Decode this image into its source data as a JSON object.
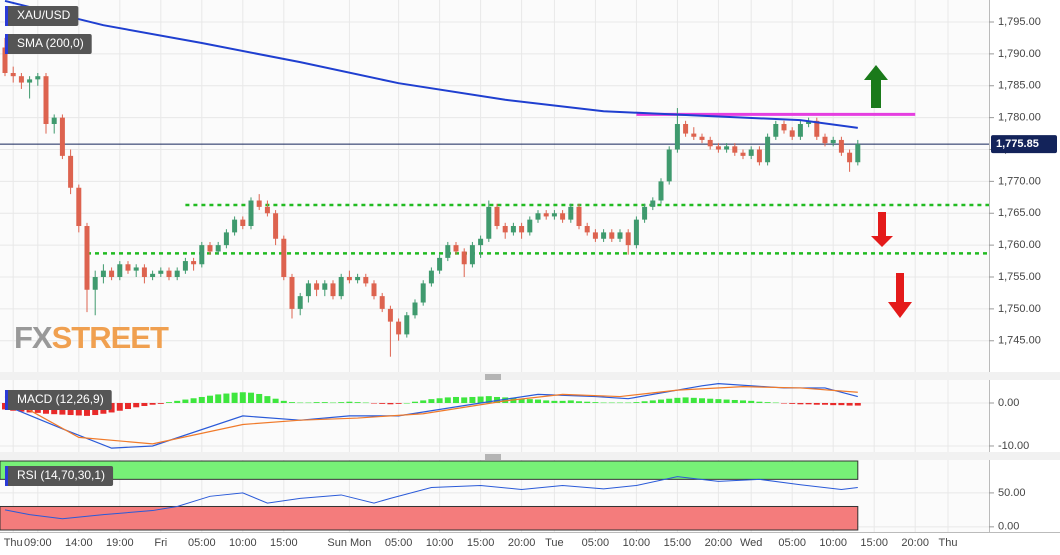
{
  "chart_data": [
    {
      "type": "candlestick",
      "title": "XAU/USD",
      "xlim": [
        0,
        120
      ],
      "xticks": [
        {
          "value": 1,
          "label": "Thu"
        },
        {
          "value": 4,
          "label": "09:00"
        },
        {
          "value": 9,
          "label": "14:00"
        },
        {
          "value": 14,
          "label": "19:00"
        },
        {
          "value": 19,
          "label": "Fri"
        },
        {
          "value": 24,
          "label": "05:00"
        },
        {
          "value": 29,
          "label": "10:00"
        },
        {
          "value": 34,
          "label": "15:00"
        },
        {
          "value": 42,
          "label": "Sun Mon"
        },
        {
          "value": 48,
          "label": "05:00"
        },
        {
          "value": 53,
          "label": "10:00"
        },
        {
          "value": 58,
          "label": "15:00"
        },
        {
          "value": 63,
          "label": "20:00"
        },
        {
          "value": 67,
          "label": "Tue"
        },
        {
          "value": 72,
          "label": "05:00"
        },
        {
          "value": 77,
          "label": "10:00"
        },
        {
          "value": 82,
          "label": "15:00"
        },
        {
          "value": 87,
          "label": "20:00"
        },
        {
          "value": 91,
          "label": "Wed"
        },
        {
          "value": 96,
          "label": "05:00"
        },
        {
          "value": 101,
          "label": "10:00"
        },
        {
          "value": 106,
          "label": "15:00"
        },
        {
          "value": 111,
          "label": "20:00"
        },
        {
          "value": 115,
          "label": "Thu"
        }
      ],
      "ylim": [
        1740.1,
        1798.45
      ],
      "yticks": [
        {
          "value": 1745,
          "label": "1,745.00"
        },
        {
          "value": 1750,
          "label": "1,750.00"
        },
        {
          "value": 1755,
          "label": "1,755.00"
        },
        {
          "value": 1760,
          "label": "1,760.00"
        },
        {
          "value": 1765,
          "label": "1,765.00"
        },
        {
          "value": 1770,
          "label": "1,770.00"
        },
        {
          "value": 1775,
          "label": "1,775.00"
        },
        {
          "value": 1780,
          "label": "1,780.00"
        },
        {
          "value": 1785,
          "label": "1,785.00"
        },
        {
          "value": 1790,
          "label": "1,790.00"
        },
        {
          "value": 1795,
          "label": "1,795.00"
        }
      ],
      "grid": true,
      "up_color": "#3f9a6e",
      "down_color": "#dd634f",
      "ohlc": [
        [
          1791,
          1792.5,
          1786.5,
          1787
        ],
        [
          1787,
          1788,
          1785.5,
          1786.5
        ],
        [
          1786.5,
          1787,
          1784.5,
          1785.5
        ],
        [
          1785.5,
          1786.5,
          1783,
          1786
        ],
        [
          1786,
          1787,
          1785,
          1786.5
        ],
        [
          1786.5,
          1787,
          1777.5,
          1779
        ],
        [
          1779,
          1780.5,
          1777.5,
          1780
        ],
        [
          1780,
          1780.5,
          1773.5,
          1774
        ],
        [
          1774,
          1775,
          1768,
          1769
        ],
        [
          1769,
          1769.5,
          1762,
          1763
        ],
        [
          1763,
          1763.5,
          1749.5,
          1753
        ],
        [
          1753,
          1756,
          1749,
          1755
        ],
        [
          1755,
          1757,
          1754,
          1756
        ],
        [
          1756,
          1756.5,
          1754.5,
          1755
        ],
        [
          1755,
          1757.5,
          1754.5,
          1757
        ],
        [
          1757,
          1757.5,
          1755.5,
          1756
        ],
        [
          1756,
          1757,
          1755,
          1756.5
        ],
        [
          1756.5,
          1757,
          1754,
          1755
        ],
        [
          1755,
          1756,
          1754.5,
          1755.5
        ],
        [
          1755.5,
          1756.5,
          1755,
          1756
        ],
        [
          1756,
          1756.5,
          1754.5,
          1755
        ],
        [
          1755,
          1756.5,
          1754.5,
          1756
        ],
        [
          1756,
          1758,
          1755.5,
          1757.5
        ],
        [
          1757.5,
          1758,
          1756,
          1757
        ],
        [
          1757,
          1760.5,
          1756.5,
          1760
        ],
        [
          1760,
          1760.5,
          1758.5,
          1759
        ],
        [
          1759,
          1760.5,
          1758.5,
          1760
        ],
        [
          1760,
          1762.5,
          1759.5,
          1762
        ],
        [
          1762,
          1764.5,
          1761.5,
          1764
        ],
        [
          1764,
          1764.5,
          1762.5,
          1763
        ],
        [
          1763,
          1767.5,
          1762.5,
          1767
        ],
        [
          1767,
          1768,
          1765.5,
          1766
        ],
        [
          1766,
          1767,
          1764.5,
          1765
        ],
        [
          1765,
          1765.5,
          1760,
          1761
        ],
        [
          1761,
          1761.5,
          1754.5,
          1755
        ],
        [
          1755,
          1755.5,
          1748.5,
          1750
        ],
        [
          1750,
          1752.5,
          1749,
          1752
        ],
        [
          1752,
          1754.5,
          1751,
          1754
        ],
        [
          1754,
          1754.5,
          1752,
          1753
        ],
        [
          1753,
          1754.5,
          1752,
          1754
        ],
        [
          1754,
          1754.5,
          1751.5,
          1752
        ],
        [
          1752,
          1755.5,
          1751.5,
          1755
        ],
        [
          1755,
          1756,
          1754,
          1754.5
        ],
        [
          1754.5,
          1755.5,
          1754,
          1755
        ],
        [
          1755,
          1755.5,
          1753.5,
          1754
        ],
        [
          1754,
          1754.5,
          1751.5,
          1752
        ],
        [
          1752,
          1752.5,
          1749.5,
          1750
        ],
        [
          1750,
          1750.5,
          1742.5,
          1748
        ],
        [
          1748,
          1748.5,
          1745,
          1746
        ],
        [
          1746,
          1749.5,
          1745.5,
          1749
        ],
        [
          1749,
          1751.5,
          1748.5,
          1751
        ],
        [
          1751,
          1754.5,
          1750.5,
          1754
        ],
        [
          1754,
          1756.5,
          1753.5,
          1756
        ],
        [
          1756,
          1758.5,
          1755.5,
          1758
        ],
        [
          1758,
          1760.5,
          1757.5,
          1760
        ],
        [
          1760,
          1760.5,
          1758.5,
          1759
        ],
        [
          1759,
          1759.5,
          1755,
          1757
        ],
        [
          1757,
          1760.5,
          1756.5,
          1760
        ],
        [
          1760,
          1761.5,
          1758,
          1761
        ],
        [
          1761,
          1767,
          1760.5,
          1766
        ],
        [
          1766,
          1766.5,
          1762.5,
          1763
        ],
        [
          1763,
          1763.5,
          1761,
          1762
        ],
        [
          1762,
          1763.5,
          1761.5,
          1763
        ],
        [
          1763,
          1763.5,
          1761,
          1762
        ],
        [
          1762,
          1764.5,
          1761.5,
          1764
        ],
        [
          1764,
          1765.5,
          1763.5,
          1765
        ],
        [
          1765,
          1765.5,
          1764,
          1764.5
        ],
        [
          1764.5,
          1765.5,
          1764,
          1765
        ],
        [
          1765,
          1765.5,
          1763.5,
          1764
        ],
        [
          1764,
          1766.5,
          1763.5,
          1766
        ],
        [
          1766,
          1766.5,
          1762.5,
          1763
        ],
        [
          1763,
          1763.5,
          1761.5,
          1762
        ],
        [
          1762,
          1762.5,
          1760.5,
          1761
        ],
        [
          1761,
          1762.5,
          1760.5,
          1762
        ],
        [
          1762,
          1762.5,
          1760.5,
          1761
        ],
        [
          1761,
          1762.5,
          1760.5,
          1762
        ],
        [
          1762,
          1762.5,
          1758.5,
          1760
        ],
        [
          1760,
          1764.5,
          1759.5,
          1764
        ],
        [
          1764,
          1766.5,
          1763.5,
          1766
        ],
        [
          1766,
          1767.5,
          1765.5,
          1767
        ],
        [
          1767,
          1770.5,
          1766.5,
          1770
        ],
        [
          1770,
          1775.5,
          1769.5,
          1775
        ],
        [
          1775,
          1781.5,
          1774.5,
          1779
        ],
        [
          1779,
          1779.5,
          1777,
          1777.5
        ],
        [
          1777.5,
          1778.5,
          1776.5,
          1777
        ],
        [
          1777,
          1777.5,
          1776,
          1776.5
        ],
        [
          1776.5,
          1777,
          1775,
          1775.5
        ],
        [
          1775.5,
          1776,
          1774.5,
          1775
        ],
        [
          1775,
          1776,
          1774.5,
          1775.5
        ],
        [
          1775.5,
          1776,
          1774,
          1774.5
        ],
        [
          1774.5,
          1775,
          1773.5,
          1774
        ],
        [
          1774,
          1775.5,
          1773.5,
          1775
        ],
        [
          1775,
          1775.5,
          1772.5,
          1773
        ],
        [
          1773,
          1777.5,
          1772.5,
          1777
        ],
        [
          1777,
          1779.5,
          1776.5,
          1779
        ],
        [
          1779,
          1779.5,
          1777.5,
          1778
        ],
        [
          1778,
          1778.5,
          1776.5,
          1777
        ],
        [
          1777,
          1779.5,
          1776.5,
          1779
        ],
        [
          1779,
          1780,
          1778.5,
          1779.5
        ],
        [
          1779.5,
          1780,
          1776.5,
          1777
        ],
        [
          1777,
          1777.5,
          1775.5,
          1776
        ],
        [
          1776,
          1777,
          1775.5,
          1776.5
        ],
        [
          1776.5,
          1777,
          1774,
          1774.5
        ],
        [
          1774.5,
          1775,
          1771.5,
          1773
        ],
        [
          1773,
          1776.5,
          1772.5,
          1775.85
        ]
      ],
      "sma": {
        "name": "SMA (200,0)",
        "color": "#1f3fd0",
        "x": [
          0,
          12,
          24,
          36,
          48,
          61,
          73,
          85,
          97,
          104
        ],
        "values": [
          1798.3,
          1794.5,
          1791.7,
          1788.7,
          1785.4,
          1782.8,
          1781,
          1780.3,
          1779.6,
          1778.4
        ]
      },
      "last_price": {
        "value": 1775.85,
        "label": "1,775.85",
        "color": "#13235a"
      },
      "levels": [
        {
          "value": 1780.5,
          "from": 77,
          "to": 111,
          "color": "#e53ee0",
          "style": "solid"
        },
        {
          "value": 1766.3,
          "from": 22,
          "to": 120,
          "color": "#22bb22",
          "style": "dotted"
        },
        {
          "value": 1758.7,
          "from": 10,
          "to": 120,
          "color": "#22bb22",
          "style": "dotted"
        }
      ],
      "watermark": [
        "FX",
        "STREET"
      ]
    },
    {
      "type": "macd",
      "name": "MACD (12,26,9)",
      "ylim": [
        -11.4,
        5.35
      ],
      "yticks": [
        {
          "value": 0,
          "label": "0.00"
        },
        {
          "value": -10,
          "label": "-10.00"
        }
      ],
      "pos_color": "#3ee63e",
      "neg_color": "#e82a2a",
      "histogram": [
        -1.5,
        -1.8,
        -2,
        -2.2,
        -2.3,
        -2.5,
        -2.6,
        -2.7,
        -2.8,
        -2.9,
        -3,
        -2.8,
        -2.5,
        -2.2,
        -1.8,
        -1.4,
        -1,
        -0.7,
        -0.4,
        -0.2,
        0.2,
        0.5,
        0.8,
        1.1,
        1.4,
        1.7,
        2,
        2.2,
        2.4,
        2.5,
        2.4,
        2.1,
        1.6,
        1,
        0.5,
        0.2,
        0.1,
        0.1,
        0.2,
        0.2,
        0.1,
        0.2,
        0.3,
        0.2,
        0.1,
        -0.1,
        -0.2,
        -0.3,
        -0.2,
        0,
        0.3,
        0.6,
        0.9,
        1.1,
        1.3,
        1.4,
        1.3,
        1.4,
        1.5,
        1.6,
        1.4,
        1.3,
        1.2,
        1,
        0.9,
        0.8,
        0.6,
        0.5,
        0.5,
        0.6,
        0.4,
        0.3,
        0.2,
        0.1,
        0.1,
        0.1,
        0.1,
        0.2,
        0.4,
        0.6,
        0.8,
        1,
        1.2,
        1.3,
        1.2,
        1.1,
        1,
        0.9,
        0.8,
        0.7,
        0.6,
        0.5,
        0.3,
        0.2,
        0.1,
        -0.1,
        -0.2,
        -0.3,
        -0.3,
        -0.4,
        -0.4,
        -0.5,
        -0.5,
        -0.6,
        -0.6
      ],
      "series": [
        {
          "color": "#2a5ad8",
          "x": [
            0,
            7,
            13,
            18,
            29,
            36,
            42,
            48,
            58,
            65,
            72,
            76,
            85,
            87,
            95,
            100,
            104
          ],
          "values": [
            -0.5,
            -6,
            -10.5,
            -10,
            -3,
            -4,
            -3,
            -3,
            0,
            2,
            1.5,
            1,
            4,
            4.5,
            3.5,
            3.5,
            1.5
          ]
        },
        {
          "color": "#f07a2a",
          "x": [
            0,
            9,
            18,
            29,
            36,
            43,
            51,
            61,
            68,
            75,
            82,
            90,
            97,
            104
          ],
          "values": [
            1.5,
            -8,
            -9.5,
            -5,
            -4,
            -3.5,
            -2.5,
            0.5,
            2,
            1.5,
            3,
            3.8,
            3.5,
            2.5
          ]
        }
      ]
    },
    {
      "type": "rsi",
      "name": "RSI (14,70,30,1)",
      "ylim": [
        -7.6,
        98.5
      ],
      "yticks": [
        {
          "value": 50,
          "label": "50.00"
        },
        {
          "value": 0,
          "label": "0.00"
        }
      ],
      "upper": 70,
      "lower": 30,
      "upper_color": "#77f077",
      "lower_color": "#f47c7c",
      "line": {
        "color": "#2a5ad8",
        "x": [
          0,
          3,
          7,
          12,
          18,
          21,
          25,
          29,
          32,
          36,
          41,
          45,
          47,
          52,
          58,
          63,
          68,
          73,
          77,
          82,
          87,
          92,
          97,
          102,
          104
        ],
        "values": [
          25,
          18,
          12,
          18,
          24,
          30,
          45,
          50,
          35,
          42,
          47,
          35,
          42,
          58,
          61,
          55,
          61,
          56,
          61,
          74,
          67,
          70,
          62,
          55,
          58
        ]
      }
    }
  ]
}
